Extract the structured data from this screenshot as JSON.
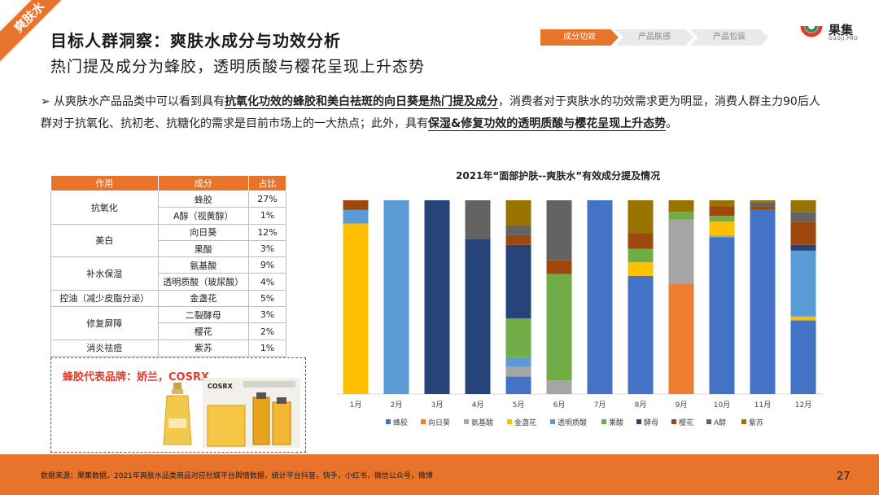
{
  "tag": "爽肤水",
  "title": "目标人群洞察：爽肤水成分与功效分析",
  "subtitle": "热门提及成分为蜂胶，透明质酸与樱花呈现上升态势",
  "steps": [
    "成分功效",
    "产品肤感",
    "产品包装"
  ],
  "logo": {
    "cn": "果集",
    "en": "GUOJI.PRO"
  },
  "description": {
    "p1": "从爽肤水产品品类中可以看到具有",
    "b1": "抗氧化功效的蜂胶和美白祛斑的向日葵是热门提及成分",
    "p2": "，消费者对于爽肤水的功效需求更为明显，消费人群主力90后人群对于抗氧化、抗初老、抗糖化的需求是目前市场上的一大热点；此外，具有",
    "b2": "保湿&修复功效的透明质酸与樱花呈现上升态势",
    "p3": "。"
  },
  "table": {
    "headers": [
      "作用",
      "成分",
      "占比"
    ],
    "groups": [
      {
        "effect": "抗氧化",
        "rows": [
          [
            "蜂胶",
            "27%"
          ],
          [
            "A醇（视黄醇）",
            "1%"
          ]
        ]
      },
      {
        "effect": "美白",
        "rows": [
          [
            "向日葵",
            "12%"
          ],
          [
            "果酸",
            "3%"
          ]
        ]
      },
      {
        "effect": "补水保湿",
        "rows": [
          [
            "氨基酸",
            "9%"
          ],
          [
            "透明质酸（玻尿酸）",
            "4%"
          ]
        ]
      },
      {
        "effect": "控油（减少皮脂分泌）",
        "rows": [
          [
            "金盏花",
            "5%"
          ]
        ]
      },
      {
        "effect": "修复屏障",
        "rows": [
          [
            "二裂酵母",
            "3%"
          ],
          [
            "樱花",
            "2%"
          ]
        ]
      },
      {
        "effect": "消炎祛痘",
        "rows": [
          [
            "紫苏",
            "1%"
          ]
        ]
      }
    ]
  },
  "brand": {
    "title": "蜂胶代表品牌：娇兰，COSRX",
    "product_label": "COSRX"
  },
  "footer": {
    "note": "数据来源：果集数据，2021年爽肤水品类商品对应社媒平台舆情数据，统计平台抖音，快手，小红书，微信公众号，微博",
    "page": "27"
  },
  "colors": {
    "accent": "#e8732a"
  },
  "chart_data": {
    "type": "bar",
    "stacked": true,
    "percent": true,
    "title": "2021年“面部护肤--爽肤水”有效成分提及情况",
    "categories": [
      "1月",
      "2月",
      "3月",
      "4月",
      "5月",
      "6月",
      "7月",
      "8月",
      "9月",
      "10月",
      "11月",
      "12月"
    ],
    "ylim": [
      0,
      100
    ],
    "grid": false,
    "legend_position": "bottom",
    "series": [
      {
        "name": "蜂胶",
        "color": "#4472c4",
        "values": [
          0,
          0,
          0,
          0,
          9,
          0,
          100,
          61,
          0,
          81,
          95,
          38
        ]
      },
      {
        "name": "向日葵",
        "color": "#ed7d31",
        "values": [
          0,
          0,
          0,
          0,
          0,
          0,
          0,
          0,
          57,
          0,
          0,
          0
        ]
      },
      {
        "name": "氨基酸",
        "color": "#a5a5a5",
        "values": [
          0,
          0,
          0,
          0,
          5,
          7,
          0,
          0,
          33,
          1,
          0,
          0
        ]
      },
      {
        "name": "金盏花",
        "color": "#ffc000",
        "values": [
          88,
          0,
          0,
          0,
          0,
          0,
          0,
          7,
          0,
          7,
          0,
          2
        ]
      },
      {
        "name": "透明质酸",
        "color": "#5b9bd5",
        "values": [
          7,
          100,
          0,
          0,
          5,
          0,
          0,
          0,
          0,
          0,
          0,
          34
        ]
      },
      {
        "name": "果酸",
        "color": "#70ad47",
        "values": [
          0,
          0,
          0,
          0,
          20,
          55,
          0,
          7,
          4,
          3,
          0,
          0
        ]
      },
      {
        "name": "酵母",
        "color": "#264478",
        "values": [
          0,
          0,
          100,
          80,
          38,
          0,
          0,
          0,
          0,
          0,
          0,
          3
        ]
      },
      {
        "name": "樱花",
        "color": "#9e480e",
        "values": [
          5,
          0,
          0,
          0,
          5,
          7,
          0,
          8,
          0,
          5,
          2,
          12
        ]
      },
      {
        "name": "A醇",
        "color": "#636363",
        "values": [
          0,
          0,
          0,
          20,
          5,
          31,
          0,
          0,
          0,
          0,
          2,
          5
        ]
      },
      {
        "name": "紫苏",
        "color": "#997300",
        "values": [
          0,
          0,
          0,
          0,
          13,
          0,
          0,
          17,
          6,
          3,
          1,
          6
        ]
      }
    ]
  }
}
